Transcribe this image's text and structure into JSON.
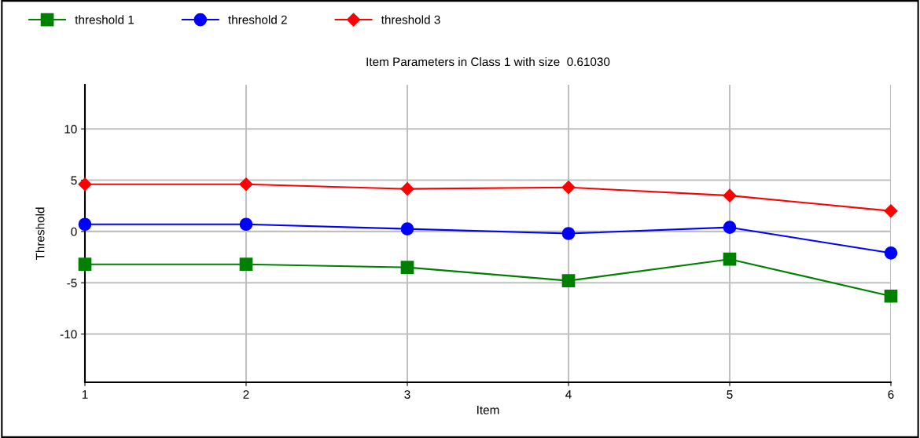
{
  "chart_data": {
    "type": "line",
    "title": "Item Parameters in Class 1 with size  0.61030",
    "xlabel": "Item",
    "ylabel": "Threshold",
    "x": [
      1,
      2,
      3,
      4,
      5,
      6
    ],
    "series": [
      {
        "name": "threshold 1",
        "color": "#008000",
        "marker": "square",
        "values": [
          -3.2,
          -3.2,
          -3.5,
          -4.8,
          -2.7,
          -6.3
        ]
      },
      {
        "name": "threshold 2",
        "color": "#0000ff",
        "marker": "circle",
        "values": [
          0.7,
          0.7,
          0.25,
          -0.2,
          0.4,
          -2.1
        ]
      },
      {
        "name": "threshold 3",
        "color": "#ff0000",
        "marker": "diamond",
        "values": [
          4.6,
          4.6,
          4.15,
          4.3,
          3.5,
          2.0
        ]
      }
    ],
    "xlim": [
      1,
      6
    ],
    "xticks": [
      1,
      2,
      3,
      4,
      5,
      6
    ],
    "ylim": [
      -14.7,
      14.3
    ],
    "yticks": [
      -10,
      -5,
      0,
      5,
      10
    ],
    "grid": true,
    "legend": "top left",
    "line_style": "solid"
  }
}
